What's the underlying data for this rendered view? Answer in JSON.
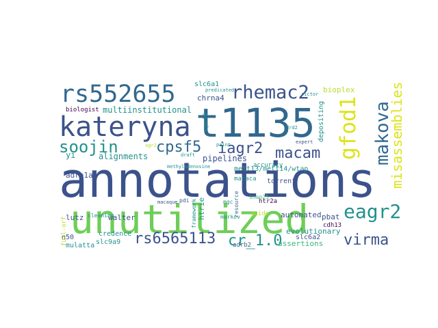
{
  "palette": {
    "purple": "#440154",
    "dark_blue": "#3b528b",
    "blue": "#31688e",
    "teal": "#21918c",
    "green_teal": "#35b779",
    "green": "#6ece58",
    "lime": "#b5de2b",
    "yellow": "#dde318"
  },
  "word_cloud": {
    "words": [
      {
        "text": "annotations",
        "color": "dark_blue"
      },
      {
        "text": "unutilized",
        "color": "green"
      },
      {
        "text": "t1135",
        "color": "blue"
      },
      {
        "text": "kateryna",
        "color": "dark_blue"
      },
      {
        "text": "rs552655",
        "color": "blue"
      },
      {
        "text": "rhemac2",
        "color": "dark_blue"
      },
      {
        "text": "gfod1",
        "color": "yellow"
      },
      {
        "text": "makova",
        "color": "blue"
      },
      {
        "text": "misassemblies",
        "color": "yellow"
      },
      {
        "text": "soojin",
        "color": "teal"
      },
      {
        "text": "cpsf5",
        "color": "blue"
      },
      {
        "text": "iagr2",
        "color": "dark_blue"
      },
      {
        "text": "macam",
        "color": "dark_blue"
      },
      {
        "text": "eagr2",
        "color": "teal"
      },
      {
        "text": "virma",
        "color": "dark_blue"
      },
      {
        "text": "rs6565113",
        "color": "dark_blue"
      },
      {
        "text": "cr_1.0",
        "color": "teal"
      },
      {
        "text": "multiinstitutional",
        "color": "teal"
      },
      {
        "text": "alignments",
        "color": "teal"
      },
      {
        "text": "pipelines",
        "color": "dark_blue"
      },
      {
        "text": "bioplex",
        "color": "lime"
      },
      {
        "text": "depositing",
        "color": "teal"
      },
      {
        "text": "chrna4",
        "color": "dark_blue"
      },
      {
        "text": "slc6a1",
        "color": "teal"
      },
      {
        "text": "biologist",
        "color": "purple"
      },
      {
        "text": "yi",
        "color": "teal"
      },
      {
        "text": "mett13/mett14/wtap",
        "color": "teal"
      },
      {
        "text": "adra1a",
        "color": "dark_blue"
      },
      {
        "text": "lutz",
        "color": "dark_blue"
      },
      {
        "text": "walter",
        "color": "dark_blue"
      },
      {
        "text": "automated",
        "color": "dark_blue"
      },
      {
        "text": "pbat",
        "color": "dark_blue"
      },
      {
        "text": "cdh13",
        "color": "purple"
      },
      {
        "text": "evolutionary",
        "color": "teal"
      },
      {
        "text": "n50",
        "color": "dark_blue"
      },
      {
        "text": "mulatta",
        "color": "teal"
      },
      {
        "text": "slc9a9",
        "color": "teal"
      },
      {
        "text": "credence",
        "color": "teal"
      },
      {
        "text": "assertions",
        "color": "green_teal"
      },
      {
        "text": "slc6a2",
        "color": "dark_blue"
      },
      {
        "text": "adrb2",
        "color": "blue"
      },
      {
        "text": "torrent",
        "color": "dark_blue"
      },
      {
        "text": "htr2a",
        "color": "purple"
      },
      {
        "text": "macaca",
        "color": "teal"
      },
      {
        "text": "accuracy",
        "color": "teal"
      },
      {
        "text": "cpsf6",
        "color": "teal"
      },
      {
        "text": "cleaning",
        "color": "teal"
      },
      {
        "text": "markov",
        "color": "teal"
      },
      {
        "text": "guide",
        "color": "lime"
      },
      {
        "text": "snap25",
        "color": "green_teal"
      },
      {
        "text": "resource",
        "color": "blue"
      },
      {
        "text": "htrie",
        "color": "teal"
      },
      {
        "text": "framework",
        "color": "teal"
      },
      {
        "text": "mgc",
        "color": "teal"
      },
      {
        "text": "pdi",
        "color": "dark_blue"
      },
      {
        "text": "predicated",
        "color": "teal"
      },
      {
        "text": "methyladenosine",
        "color": "teal"
      },
      {
        "text": "paint",
        "color": "teal"
      },
      {
        "text": "draft",
        "color": "teal"
      },
      {
        "text": "expert",
        "color": "dark_blue"
      },
      {
        "text": "drd2",
        "color": "teal"
      },
      {
        "text": "full-orf",
        "color": "lime"
      },
      {
        "text": "macaque",
        "color": "dark_blue"
      },
      {
        "text": "agr2",
        "color": "lime"
      },
      {
        "text": "rictor",
        "color": "teal"
      }
    ]
  }
}
